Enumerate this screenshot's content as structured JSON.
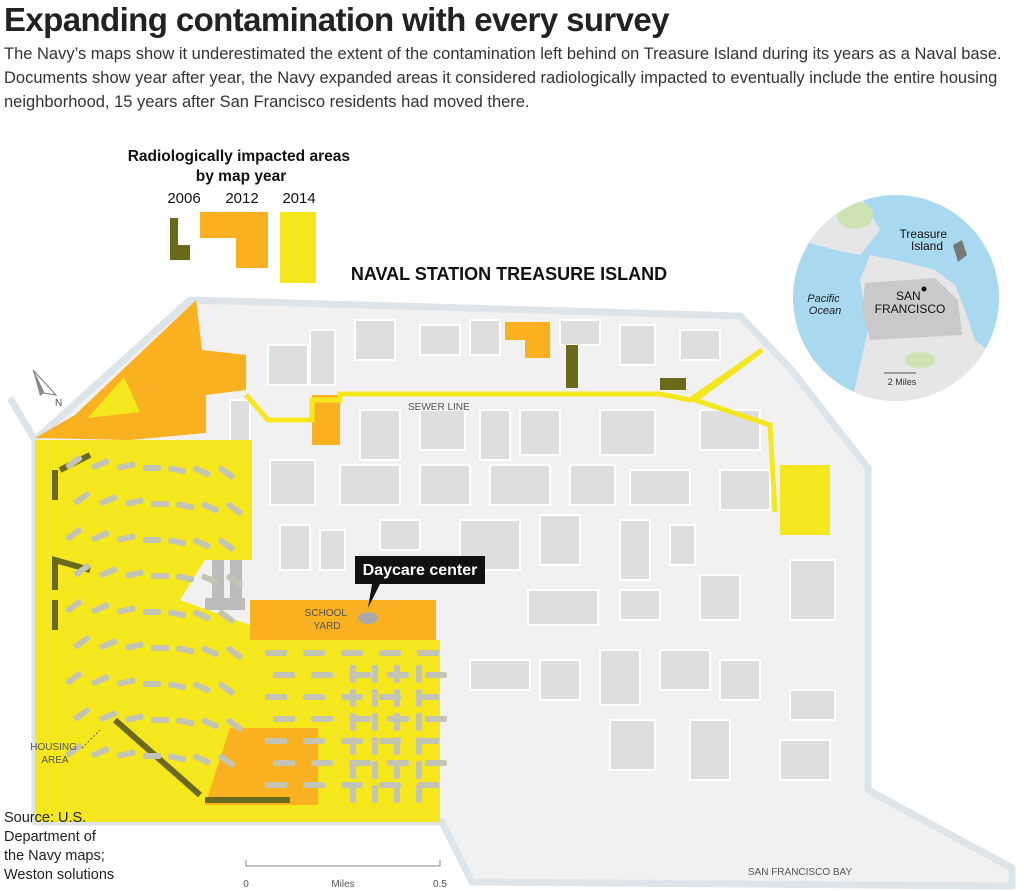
{
  "header": {
    "title": "Expanding contamination with every survey",
    "subtitle": "The Navy’s maps show it underestimated the extent of the contamination left behind on Treasure Island during its years as a Naval base. Documents show year after year, the Navy expanded areas it considered radiologically impacted to eventually include the entire housing neighborhood, 15 years after San Francisco residents had moved there."
  },
  "legend": {
    "title": [
      "Radiologically impacted areas",
      "by map year"
    ],
    "items": [
      {
        "label": "2006",
        "color": "#6b6a1c"
      },
      {
        "label": "2012",
        "color": "#f9b021"
      },
      {
        "label": "2014",
        "color": "#f5e71e"
      }
    ]
  },
  "map": {
    "name": "NAVAL STATION TREASURE ISLAND",
    "sewer_line": "SEWER LINE",
    "daycare": "Daycare center",
    "school_yard": [
      "SCHOOL",
      "YARD"
    ],
    "housing_area": [
      "HOUSING",
      "AREA"
    ],
    "north": "N",
    "bay": "SAN FRANCISCO BAY"
  },
  "inset": {
    "treasure_island": [
      "Treasure",
      "Island"
    ],
    "ocean": [
      "Pacific",
      "Ocean"
    ],
    "city": [
      "SAN",
      "FRANCISCO"
    ],
    "scale": "2 Miles"
  },
  "scale_bar": {
    "start": "0",
    "unit": "Miles",
    "end": "0.5"
  },
  "source": [
    "Source: U.S.",
    "Department of",
    "the Navy maps;",
    "Weston solutions"
  ]
}
